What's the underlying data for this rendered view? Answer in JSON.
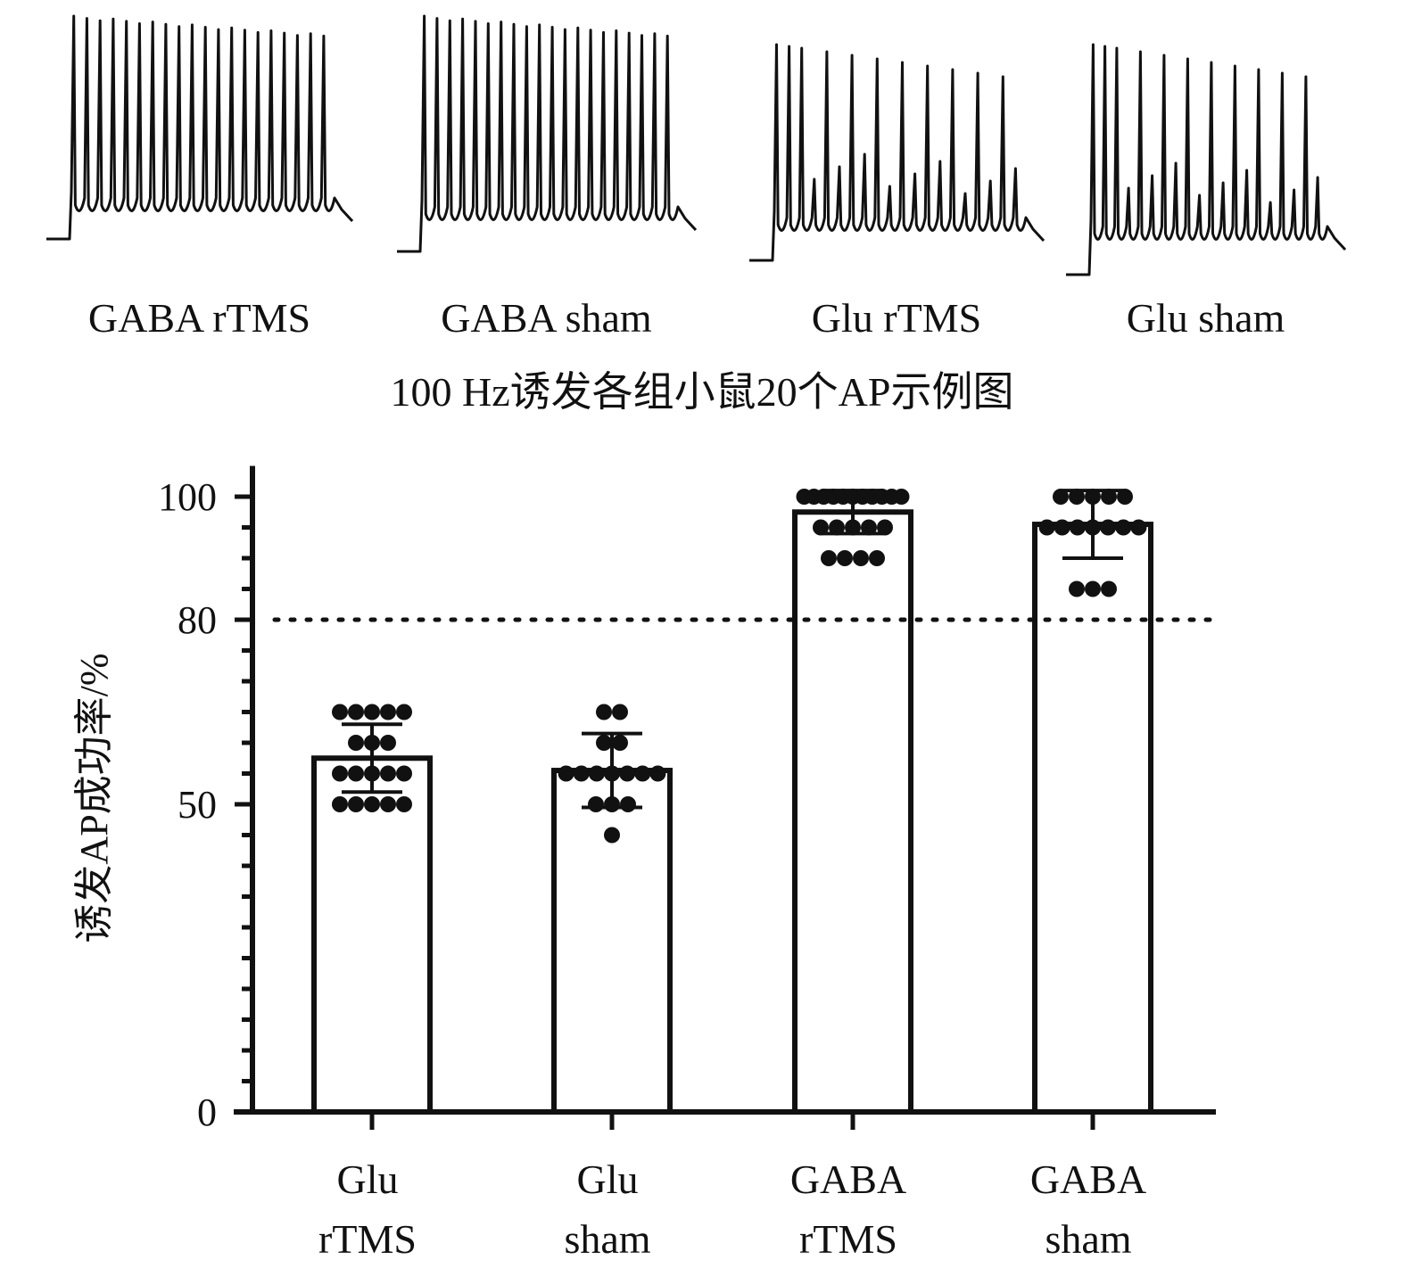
{
  "traces_panel": {
    "caption": "100 Hz诱发各组小鼠20个AP示例图",
    "traces": [
      {
        "label": "GABA rTMS",
        "spike_count": 20,
        "pattern": "full"
      },
      {
        "label": "GABA sham",
        "spike_count": 20,
        "pattern": "full"
      },
      {
        "label": "Glu rTMS",
        "spike_count": 20,
        "pattern": "failing"
      },
      {
        "label": "Glu sham",
        "spike_count": 20,
        "pattern": "failing"
      }
    ],
    "trace_color": "#111111"
  },
  "chart_data": {
    "type": "bar",
    "ylabel": "诱发AP成功率/%",
    "xlabel": "",
    "ylim": [
      0,
      105
    ],
    "yticks": [
      0,
      50,
      80,
      100
    ],
    "reference_line": {
      "y": 80,
      "style": "dotted"
    },
    "categories": [
      {
        "line1": "Glu",
        "line2": "rTMS"
      },
      {
        "line1": "Glu",
        "line2": "sham"
      },
      {
        "line1": "GABA",
        "line2": "rTMS"
      },
      {
        "line1": "GABA",
        "line2": "sham"
      }
    ],
    "values": [
      57.5,
      55.5,
      97.5,
      95.5
    ],
    "errors": [
      5.5,
      6,
      3.5,
      5.5
    ],
    "points": [
      [
        65,
        65,
        65,
        65,
        65,
        60,
        60,
        60,
        55,
        55,
        55,
        55,
        55,
        50,
        50,
        50,
        50,
        50
      ],
      [
        65,
        65,
        60,
        60,
        55,
        55,
        55,
        55,
        55,
        55,
        55,
        50,
        50,
        50,
        45
      ],
      [
        100,
        100,
        100,
        100,
        100,
        100,
        100,
        100,
        100,
        100,
        100,
        95,
        95,
        95,
        95,
        95,
        90,
        90,
        90,
        90
      ],
      [
        100,
        100,
        100,
        100,
        100,
        95,
        95,
        95,
        95,
        95,
        95,
        95,
        85,
        85,
        85
      ]
    ],
    "grid": false,
    "bar_fill": "#ffffff",
    "bar_stroke": "#111111"
  }
}
